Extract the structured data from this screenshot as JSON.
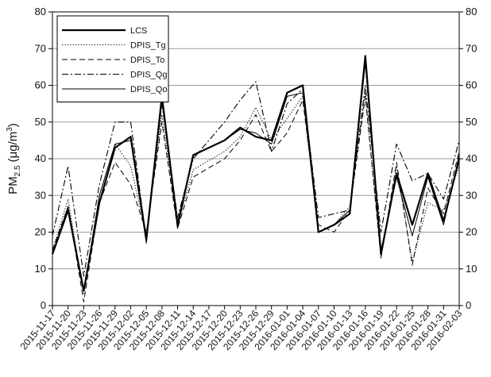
{
  "chart_data": {
    "type": "line",
    "ylabel_main": "PM",
    "ylabel_sub": "2.5",
    "ylabel_unit": "(μg/m",
    "ylabel_unit_sup": "3",
    "ylabel_unit_close": ")",
    "ylim": [
      0,
      80
    ],
    "yticks": [
      0,
      10,
      20,
      30,
      40,
      50,
      60,
      70,
      80
    ],
    "grid": true,
    "legend_position": "top-left",
    "x_tick_labels": [
      "2015-11-17",
      "2015-11-20",
      "2015-11-23",
      "2015-11-26",
      "2015-11-29",
      "2015-12-02",
      "2015-12-05",
      "2015-12-08",
      "2015-12-11",
      "2015-12-14",
      "2015-12-17",
      "2015-12-20",
      "2015-12-23",
      "2015-12-26",
      "2015-12-29",
      "2016-01-01",
      "2016-01-04",
      "2016-01-07",
      "2016-01-10",
      "2016-01-13",
      "2016-01-16",
      "2016-01-19",
      "2016-01-22",
      "2016-01-25",
      "2016-01-28",
      "2016-01-31",
      "2016-02-03"
    ],
    "x": [
      "2015-11-17",
      "2015-11-20",
      "2015-11-23",
      "2015-11-26",
      "2015-11-29",
      "2015-12-02",
      "2015-12-05",
      "2015-12-08",
      "2015-12-11",
      "2015-12-14",
      "2015-12-20",
      "2015-12-23",
      "2015-12-26",
      "2015-12-29",
      "2016-01-01",
      "2016-01-04",
      "2016-01-07",
      "2016-01-10",
      "2016-01-13",
      "2016-01-16",
      "2016-01-19",
      "2016-01-22",
      "2016-01-25",
      "2016-01-28",
      "2016-01-31",
      "2016-02-03"
    ],
    "series": [
      {
        "name": "LCS",
        "style": "solid-thick",
        "values": [
          14,
          26,
          4,
          28,
          43,
          46,
          18,
          57,
          22,
          41,
          45,
          48.5,
          46,
          45,
          58,
          60,
          20,
          22,
          25,
          68,
          14,
          36,
          22,
          36,
          23,
          40
        ]
      },
      {
        "name": "DPIS_Tg",
        "style": "dotted",
        "values": [
          15,
          29,
          3,
          30,
          44,
          38,
          19,
          52,
          22,
          37,
          42,
          46,
          54,
          45,
          51,
          57,
          20,
          22,
          27,
          58,
          13,
          38,
          12,
          28,
          26,
          38
        ]
      },
      {
        "name": "DPIS_To",
        "style": "dashed",
        "values": [
          15,
          27,
          1,
          28,
          39,
          33,
          20,
          50,
          21,
          35,
          40,
          45,
          52,
          42,
          47,
          56,
          22,
          20,
          26,
          57,
          13,
          39,
          11,
          32,
          25,
          42
        ]
      },
      {
        "name": "DPIS_Qg",
        "style": "dashdot",
        "values": [
          19,
          38,
          8,
          33,
          50,
          50,
          18,
          55,
          24,
          40,
          50,
          56,
          61,
          42,
          55,
          59,
          24,
          25,
          26,
          60,
          20,
          44,
          34,
          36,
          29,
          45
        ]
      },
      {
        "name": "DPIS_Qo",
        "style": "solid-thin",
        "values": [
          14,
          27,
          4,
          30,
          44,
          45,
          17,
          56,
          21,
          41,
          45,
          48,
          47,
          44,
          57,
          58,
          20,
          22,
          26,
          66,
          15,
          35,
          19,
          35,
          22,
          41
        ]
      }
    ]
  }
}
